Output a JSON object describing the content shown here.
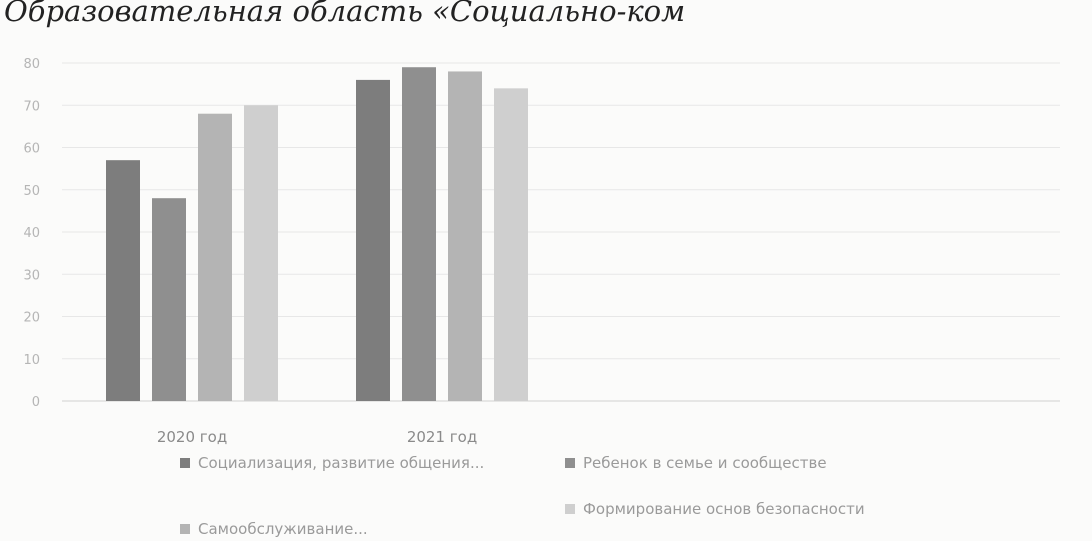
{
  "title": "Образовательная область «Социально-ком",
  "chart_data": {
    "type": "bar",
    "categories": [
      "2020 год",
      "2021 год"
    ],
    "series": [
      {
        "name": "Социализация, развитие общения...",
        "color": "#7d7d7d",
        "values": [
          57,
          76
        ]
      },
      {
        "name": "Ребенок в семье и сообществе",
        "color": "#8f8f8f",
        "values": [
          48,
          79
        ]
      },
      {
        "name": "Самообслуживание...",
        "color": "#b4b4b4",
        "values": [
          68,
          78
        ]
      },
      {
        "name": "Формирование основ безопасности",
        "color": "#cfcfcf",
        "values": [
          70,
          74
        ]
      }
    ],
    "yticks": [
      "0",
      "10",
      "20",
      "30",
      "40",
      "50",
      "60",
      "70",
      "80"
    ],
    "ylim": [
      0,
      80
    ],
    "grid": true,
    "legend_position": "bottom"
  }
}
